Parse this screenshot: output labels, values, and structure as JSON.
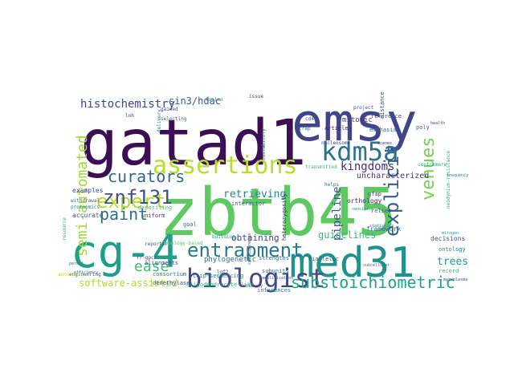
{
  "cloud": {
    "words": [
      {
        "text": "zbtb45",
        "c": "#5ec962"
      },
      {
        "text": "gatad1",
        "c": "#3b0f56"
      },
      {
        "text": "emsy",
        "c": "#414487"
      },
      {
        "text": "med31",
        "c": "#21918c"
      },
      {
        "text": "cg-4",
        "c": "#1f9e89"
      },
      {
        "text": "assertions",
        "c": "#b5de2b"
      },
      {
        "text": "biologist",
        "c": "#3e4a89"
      },
      {
        "text": "entrapment",
        "c": "#2a788e"
      },
      {
        "text": "kdm5a",
        "c": "#2c728e"
      },
      {
        "text": "substoichiometric",
        "c": "#20a386"
      },
      {
        "text": "curators",
        "c": "#31688e"
      },
      {
        "text": "expert",
        "c": "#b8de29"
      },
      {
        "text": "znf131",
        "c": "#3b528b"
      },
      {
        "text": "explicit",
        "c": "#35608d"
      },
      {
        "text": "venues",
        "c": "#75d054"
      },
      {
        "text": "semi-automated",
        "c": "#a0da39"
      },
      {
        "text": "paint",
        "c": "#2d708e"
      },
      {
        "text": "kingdoms",
        "c": "#472d7b"
      },
      {
        "text": "ease",
        "c": "#3dbc74"
      },
      {
        "text": "histochemistry",
        "c": "#3f4889"
      },
      {
        "text": "software-assisted",
        "c": "#addc30"
      },
      {
        "text": "sin3/hdac",
        "c": "#39568c"
      },
      {
        "text": "pipeline",
        "c": "#3b528b"
      },
      {
        "text": "retrieving",
        "c": "#25858e"
      },
      {
        "text": "obtaining",
        "c": "#404688"
      },
      {
        "text": "guidelines",
        "c": "#37b878"
      },
      {
        "text": "trees",
        "c": "#1f9a8a"
      },
      {
        "text": "uncharacterized",
        "c": "#46337f"
      },
      {
        "text": "mitotic",
        "c": "#443a83"
      },
      {
        "text": "phylogenetic",
        "c": "#2c738e"
      },
      {
        "text": "alignments",
        "c": "#3a538b"
      },
      {
        "text": "framework",
        "c": "#31688e"
      },
      {
        "text": "biallelic",
        "c": "#365c8d"
      },
      {
        "text": "subunits",
        "c": "#2e6e8e"
      },
      {
        "text": "orthology",
        "c": "#481f70"
      },
      {
        "text": "interactor",
        "c": "#3c508b"
      },
      {
        "text": "consortium",
        "c": "#2b758e"
      },
      {
        "text": "heterozygosity",
        "c": "#482677"
      },
      {
        "text": "decisions",
        "c": "#3d4e8a"
      },
      {
        "text": "record",
        "c": "#35b779"
      },
      {
        "text": "ontology",
        "c": "#287d8e"
      },
      {
        "text": "inferences",
        "c": "#2a788e"
      },
      {
        "text": "strengths",
        "c": "#31688e"
      },
      {
        "text": "examples",
        "c": "#404588"
      },
      {
        "text": "accurate",
        "c": "#3b528b"
      },
      {
        "text": "resource",
        "c": "#2fb47c"
      },
      {
        "text": "uniform",
        "c": "#453882"
      },
      {
        "text": "goal",
        "c": "#2d718e"
      },
      {
        "text": "relies",
        "c": "#3e4c8a"
      },
      {
        "text": "emphasis",
        "c": "#2e6f8e"
      },
      {
        "text": "reference",
        "c": "#3b528b"
      },
      {
        "text": "article",
        "c": "#481b6d"
      },
      {
        "text": "poly",
        "c": "#2c728e"
      },
      {
        "text": "distance",
        "c": "#3f4788"
      },
      {
        "text": "centromere",
        "c": "#22a785"
      },
      {
        "text": "gfap",
        "c": "#46327e"
      },
      {
        "text": "demethylase",
        "c": "#39568c"
      },
      {
        "text": "chip-sequencing",
        "c": "#26828e"
      },
      {
        "text": "oligodendrocyte-like",
        "c": "#32b67a"
      },
      {
        "text": "selecting",
        "c": "#31688e"
      },
      {
        "text": "delivery",
        "c": "#2a788e"
      },
      {
        "text": "gained",
        "c": "#3c4f8a"
      },
      {
        "text": "loh",
        "c": "#472a7a"
      },
      {
        "text": "cd44",
        "c": "#3b528b"
      },
      {
        "text": "trap",
        "c": "#2c738e"
      },
      {
        "text": "issue",
        "c": "#404688"
      },
      {
        "text": "fusion",
        "c": "#2a778e"
      },
      {
        "text": "instability",
        "c": "#375b8d"
      },
      {
        "text": "neodymium-resistance",
        "c": "#2fb47c"
      },
      {
        "text": "rr-gpcr",
        "c": "#433e85"
      },
      {
        "text": "depositing",
        "c": "#4ac16d"
      },
      {
        "text": "homology-based",
        "c": "#5ec962"
      },
      {
        "text": "engineering",
        "c": "#3e4a89"
      },
      {
        "text": "permit",
        "c": "#2d708e"
      },
      {
        "text": "annotations",
        "c": "#bddf26"
      },
      {
        "text": "withdrawal",
        "c": "#33638d"
      },
      {
        "text": "proteomics",
        "c": "#287c8e"
      },
      {
        "text": "efficiency",
        "c": "#31688e"
      },
      {
        "text": "mitogen",
        "c": "#1f968b"
      },
      {
        "text": "subcellular",
        "c": "#2e6e8e"
      },
      {
        "text": "lgf2",
        "c": "#3e4989"
      },
      {
        "text": "library",
        "c": "#472d7b"
      },
      {
        "text": "amplification",
        "c": "#38598c"
      },
      {
        "text": "helps",
        "c": "#2b758e"
      },
      {
        "text": "transmitted",
        "c": "#35b779"
      },
      {
        "text": "nucleosome",
        "c": "#404588"
      },
      {
        "text": "project",
        "c": "#3b528b"
      },
      {
        "text": "sensitive",
        "c": "#1fa088"
      },
      {
        "text": "statistics",
        "c": "#2c728e"
      },
      {
        "text": "building",
        "c": "#21918c"
      },
      {
        "text": "reporter",
        "c": "#31688e"
      },
      {
        "text": "health",
        "c": "#443983"
      },
      {
        "text": "mycoplasma",
        "c": "#3b528b"
      },
      {
        "text": "frequency",
        "c": "#2a788e"
      },
      {
        "text": "scenes",
        "c": "#481f70"
      },
      {
        "text": "cardiogenesis",
        "c": "#3e4a89"
      }
    ]
  }
}
